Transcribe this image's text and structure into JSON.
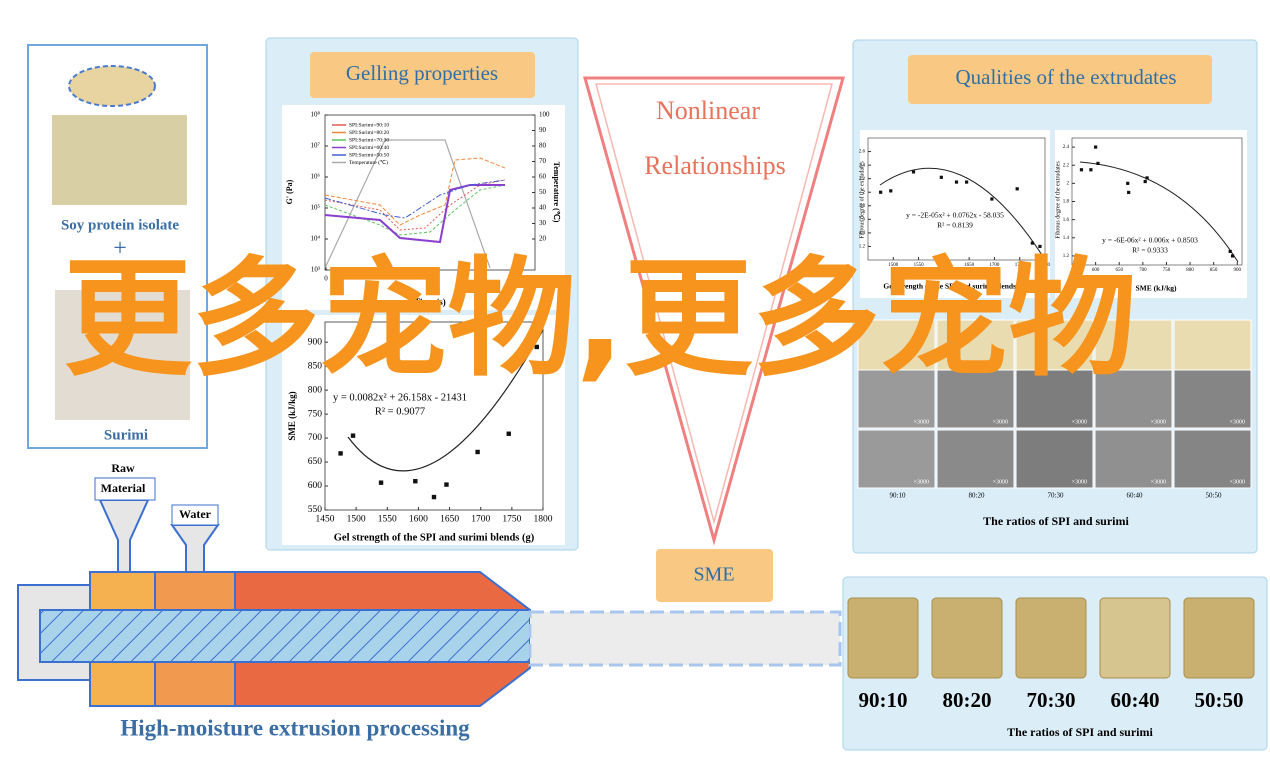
{
  "left_panel": {
    "top_label": "Soy protein isolate",
    "plus": "+",
    "bottom_label": "Surimi"
  },
  "gelling": {
    "title": "Gelling properties",
    "chart": {
      "type": "line",
      "ylabel": "G' (Pa)",
      "y2label": "Temperature (℃)",
      "xlabel": "Time (s)",
      "yticks": [
        {
          "value": 1000,
          "label": "10³"
        },
        {
          "value": 10000,
          "label": "10⁴"
        },
        {
          "value": 100000,
          "label": "10⁵"
        },
        {
          "value": 1000000,
          "label": "10⁶"
        },
        {
          "value": 10000000,
          "label": "10⁷"
        },
        {
          "value": 100000000,
          "label": "10⁸"
        }
      ],
      "y2ticks": [
        20,
        30,
        40,
        50,
        60,
        70,
        80,
        90,
        100
      ],
      "xticks": [
        0
      ],
      "series": [
        {
          "name": "SPI:Surimi=90:10",
          "color": "#e05a4f"
        },
        {
          "name": "SPI:Surimi=80:20",
          "color": "#f0883a"
        },
        {
          "name": "SPI:Surimi=70:30",
          "color": "#5cc45c"
        },
        {
          "name": "SPI:Surimi=60:40",
          "color": "#8a3fd1"
        },
        {
          "name": "SPI:Surimi=50:50",
          "color": "#3f5fd1"
        },
        {
          "name": "Temperature (℃)",
          "color": "#aaaaaa"
        }
      ]
    }
  },
  "sme_chart": {
    "type": "scatter",
    "xlabel": "Gel strength of the SPI and surimi blends (g)",
    "ylabel": "SME (kJ/kg)",
    "equation": "y = 0.0082x² + 26.158x - 21431",
    "r2": "R² = 0.9077",
    "x": [
      1475,
      1495,
      1540,
      1595,
      1625,
      1645,
      1695,
      1745,
      1775,
      1790
    ],
    "values": [
      668,
      705,
      607,
      610,
      577,
      603,
      671,
      709,
      885,
      890
    ],
    "xlim": [
      1450,
      1800
    ],
    "ylim": [
      550,
      942
    ],
    "xticks": [
      1450,
      1500,
      1550,
      1600,
      1650,
      1700,
      1750,
      1800
    ],
    "yticks": [
      550,
      600,
      650,
      700,
      750,
      800,
      850,
      900
    ]
  },
  "nonlinear": {
    "line1": "Nonlinear",
    "line2": "Relationships"
  },
  "qualities": {
    "title": "Qualities of the extrudates",
    "chart_a": {
      "type": "scatter",
      "xlabel": "Gel strength of the SPI and surimi blends (g)",
      "ylabel": "Fibrous degree of the extrudates",
      "equation": "y = -2E-05x² + 0.0762x - 58.035",
      "r2": "R² = 0.8139",
      "x": [
        1475,
        1495,
        1540,
        1595,
        1625,
        1645,
        1695,
        1745,
        1775,
        1790
      ],
      "values": [
        2.0,
        2.02,
        2.3,
        2.22,
        2.15,
        2.15,
        1.9,
        2.05,
        1.25,
        1.2
      ],
      "xlim": [
        1450,
        1800
      ],
      "ylim": [
        1.0,
        2.8
      ],
      "yticks": [
        1.2,
        1.4,
        1.6,
        1.8,
        2,
        2.2,
        2.4,
        2.6
      ],
      "xticks": [
        1500,
        1550,
        1600,
        1650,
        1700,
        1750,
        1800
      ]
    },
    "chart_b": {
      "type": "scatter",
      "xlabel": "SME (kJ/kg)",
      "ylabel": "Fibrous degree of the extrudates",
      "equation": "y = -6E-06x² + 0.006x + 0.8503",
      "r2": "R² = 0.9333",
      "x": [
        570,
        590,
        600,
        605,
        668,
        670,
        705,
        709,
        885,
        890
      ],
      "values": [
        2.15,
        2.15,
        2.4,
        2.22,
        2.0,
        1.9,
        2.02,
        2.06,
        1.25,
        1.2
      ],
      "xlim": [
        550,
        910
      ],
      "ylim": [
        1.1,
        2.5
      ],
      "yticks": [
        1.2,
        1.4,
        1.6,
        1.8,
        2,
        2.2,
        2.4
      ],
      "xticks": [
        600,
        650,
        700,
        750,
        800,
        850,
        900
      ]
    },
    "sem": {
      "magnification": "×3000",
      "ratios": [
        "90:10",
        "80:20",
        "70:30",
        "60:40",
        "50:50"
      ]
    },
    "caption": "The ratios of SPI and surimi"
  },
  "sme_label": "SME",
  "extruder": {
    "raw_material": [
      "Raw",
      "Material"
    ],
    "water": "Water",
    "label": "High-moisture extrusion processing"
  },
  "samples": {
    "ratios": [
      "90:10",
      "80:20",
      "70:30",
      "60:40",
      "50:50"
    ],
    "caption": "The ratios of SPI and surimi"
  },
  "watermark": "更多宠物,更多宠物"
}
